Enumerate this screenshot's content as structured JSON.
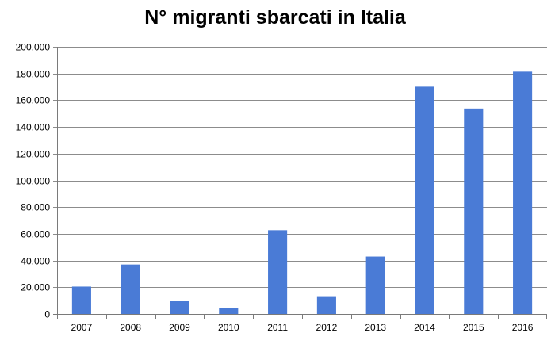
{
  "chart_data": {
    "type": "bar",
    "title": "N° migranti sbarcati in Italia",
    "xlabel": "",
    "ylabel": "",
    "categories": [
      "2007",
      "2008",
      "2009",
      "2010",
      "2011",
      "2012",
      "2013",
      "2014",
      "2015",
      "2016"
    ],
    "values": [
      20500,
      37000,
      9600,
      4400,
      62700,
      13300,
      43000,
      170100,
      153800,
      181400
    ],
    "ylim": [
      0,
      200000
    ],
    "yticks": [
      {
        "value": 0,
        "label": "0"
      },
      {
        "value": 20000,
        "label": "20.000"
      },
      {
        "value": 40000,
        "label": "40.000"
      },
      {
        "value": 60000,
        "label": "60.000"
      },
      {
        "value": 80000,
        "label": "80.000"
      },
      {
        "value": 100000,
        "label": "100.000"
      },
      {
        "value": 120000,
        "label": "120.000"
      },
      {
        "value": 140000,
        "label": "140.000"
      },
      {
        "value": 160000,
        "label": "160.000"
      },
      {
        "value": 180000,
        "label": "180.000"
      },
      {
        "value": 200000,
        "label": "200.000"
      }
    ],
    "grid": true,
    "legend": "none",
    "bar_color": "#4a7bd6"
  }
}
